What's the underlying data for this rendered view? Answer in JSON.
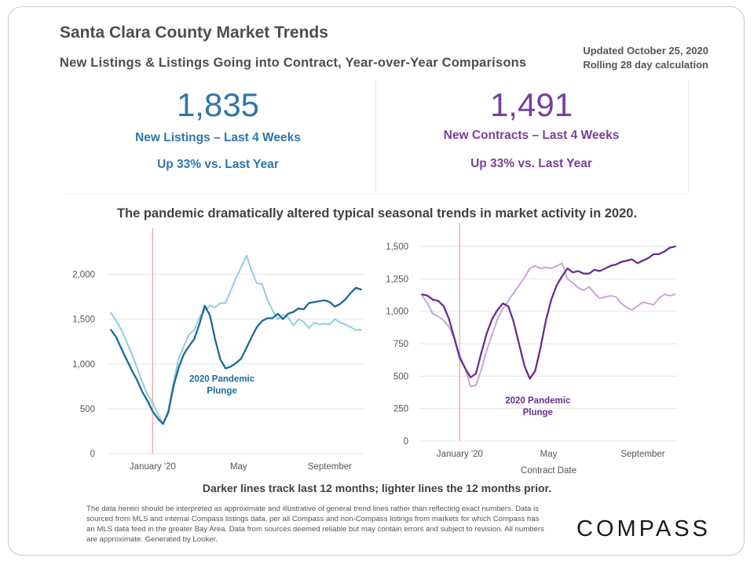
{
  "header": {
    "title": "Santa Clara County Market Trends",
    "subtitle": "New Listings & Listings Going into Contract, Year-over-Year Comparisons",
    "updated_line1": "Updated October 25, 2020",
    "updated_line2": "Rolling 28 day calculation"
  },
  "kpis": {
    "listings": {
      "value": "1,835",
      "label": "New Listings – Last 4 Weeks",
      "change": "Up 33% vs. Last Year"
    },
    "contracts": {
      "value": "1,491",
      "label": "New Contracts – Last 4 Weeks",
      "change": "Up 33% vs. Last Year"
    }
  },
  "headline": "The pandemic dramatically altered typical seasonal trends in market activity in 2020.",
  "caption": "Darker lines track last 12 months; lighter lines the 12 months prior.",
  "disclaimer": "The data herein should be interpreted as approximate and illustrative of general trend lines rather than reflecting exact numbers. Data is sourced from MLS and internal Compass listings data, per all Compass and non-Compass listings from markets for which Compass has an MLS data feed in the greater Bay Area. Data from sources deemed reliable but may contain errors and subject to revision. All numbers are approximate. Generated by Looker.",
  "logo": "COMPASS",
  "colors": {
    "listings_dark": "#1a6b96",
    "listings_light": "#92cde0",
    "contracts_dark": "#6a2d8f",
    "contracts_light": "#c9a6d6",
    "marker": "#f0a0a8",
    "grid": "#e6e6e6"
  },
  "chart_data": [
    {
      "type": "line",
      "name": "New Listings",
      "ylim": [
        0,
        2250
      ],
      "yticks": [
        0,
        500,
        1000,
        1500,
        2000
      ],
      "ytick_labels": [
        "0",
        "500",
        "1,000",
        "1,500",
        "2,000"
      ],
      "xticks": [
        {
          "x": 3,
          "label": "January '20"
        },
        {
          "x": 19.5,
          "label": "May"
        },
        {
          "x": 37,
          "label": "September"
        }
      ],
      "xlim": [
        -5.5,
        43.5
      ],
      "xlabel": "",
      "marker_x": 3,
      "annotation": [
        "2020 Pandemic",
        "Plunge"
      ],
      "annotation_pos": [
        16.3,
        800
      ],
      "series": [
        {
          "role": "dark",
          "x": [
            -5,
            -4,
            -3,
            -2,
            -1,
            0,
            1,
            2,
            3,
            4,
            5,
            6,
            7,
            8,
            9,
            10,
            11,
            12,
            13,
            14,
            15,
            16,
            17,
            18,
            19,
            20,
            21,
            22,
            23,
            24,
            25,
            26,
            27,
            28,
            29,
            30,
            31,
            32,
            33,
            34,
            35,
            36,
            37,
            38,
            39,
            40,
            41,
            42,
            43
          ],
          "y": [
            1380,
            1300,
            1170,
            1050,
            930,
            820,
            690,
            590,
            470,
            390,
            330,
            460,
            750,
            960,
            1110,
            1200,
            1280,
            1450,
            1650,
            1540,
            1270,
            1050,
            950,
            970,
            1010,
            1060,
            1180,
            1300,
            1410,
            1480,
            1510,
            1510,
            1560,
            1500,
            1560,
            1580,
            1620,
            1610,
            1680,
            1690,
            1700,
            1710,
            1690,
            1640,
            1670,
            1720,
            1790,
            1850,
            1830
          ]
        },
        {
          "role": "light",
          "x": [
            -5,
            -4,
            -3,
            -2,
            -1,
            0,
            1,
            2,
            3,
            4,
            5,
            6,
            7,
            8,
            9,
            10,
            11,
            12,
            13,
            14,
            15,
            16,
            17,
            18,
            19,
            20,
            21,
            22,
            23,
            24,
            25,
            26,
            27,
            28,
            29,
            30,
            31,
            32,
            33,
            34,
            35,
            36,
            37,
            38,
            39,
            40,
            41,
            42,
            43
          ],
          "y": [
            1570,
            1480,
            1380,
            1250,
            1110,
            960,
            800,
            660,
            570,
            440,
            330,
            480,
            800,
            1060,
            1200,
            1330,
            1380,
            1520,
            1600,
            1650,
            1630,
            1680,
            1680,
            1820,
            1960,
            2080,
            2210,
            2040,
            1900,
            1890,
            1720,
            1600,
            1500,
            1550,
            1520,
            1430,
            1500,
            1470,
            1400,
            1460,
            1440,
            1450,
            1440,
            1500,
            1460,
            1440,
            1410,
            1380,
            1380
          ]
        }
      ]
    },
    {
      "type": "line",
      "name": "New Contracts",
      "xlabel": "Contract Date",
      "ylim": [
        0,
        1500
      ],
      "yticks": [
        0,
        250,
        500,
        750,
        1000,
        1250,
        1500
      ],
      "ytick_labels": [
        "0",
        "250",
        "500",
        "750",
        "1,000",
        "1,250",
        "1,500"
      ],
      "xticks": [
        {
          "x": 3,
          "label": "January '20"
        },
        {
          "x": 19.5,
          "label": "May"
        },
        {
          "x": 37,
          "label": "September"
        }
      ],
      "xlim": [
        -4.5,
        43.5
      ],
      "marker_x": 3,
      "annotation": [
        "2020 Pandemic",
        "Plunge"
      ],
      "annotation_pos": [
        17.5,
        290
      ],
      "series": [
        {
          "role": "dark",
          "x": [
            -4,
            -3,
            -2,
            -1,
            0,
            1,
            2,
            3,
            4,
            5,
            6,
            7,
            8,
            9,
            10,
            11,
            12,
            13,
            14,
            15,
            16,
            17,
            18,
            19,
            20,
            21,
            22,
            23,
            24,
            25,
            26,
            27,
            28,
            29,
            30,
            31,
            32,
            33,
            34,
            35,
            36,
            37,
            38,
            39,
            40,
            41,
            42,
            43
          ],
          "y": [
            1130,
            1120,
            1090,
            1080,
            1040,
            940,
            790,
            640,
            560,
            490,
            520,
            680,
            830,
            940,
            1010,
            1060,
            1040,
            920,
            750,
            580,
            480,
            540,
            720,
            930,
            1090,
            1200,
            1270,
            1330,
            1300,
            1310,
            1290,
            1290,
            1320,
            1310,
            1330,
            1350,
            1360,
            1380,
            1390,
            1400,
            1370,
            1390,
            1410,
            1440,
            1440,
            1460,
            1490,
            1500
          ]
        },
        {
          "role": "light",
          "x": [
            -4,
            -3,
            -2,
            -1,
            0,
            1,
            2,
            3,
            4,
            5,
            6,
            7,
            8,
            9,
            10,
            11,
            12,
            13,
            14,
            15,
            16,
            17,
            18,
            19,
            20,
            21,
            22,
            23,
            24,
            25,
            26,
            27,
            28,
            29,
            30,
            31,
            32,
            33,
            34,
            35,
            36,
            37,
            38,
            39,
            40,
            41,
            42,
            43
          ],
          "y": [
            1120,
            1060,
            980,
            960,
            930,
            880,
            790,
            660,
            560,
            420,
            430,
            550,
            700,
            820,
            940,
            1020,
            1080,
            1140,
            1200,
            1260,
            1330,
            1350,
            1330,
            1340,
            1330,
            1350,
            1370,
            1250,
            1220,
            1180,
            1160,
            1190,
            1140,
            1100,
            1110,
            1120,
            1110,
            1060,
            1030,
            1010,
            1040,
            1070,
            1060,
            1050,
            1100,
            1130,
            1120,
            1130
          ]
        }
      ]
    }
  ]
}
